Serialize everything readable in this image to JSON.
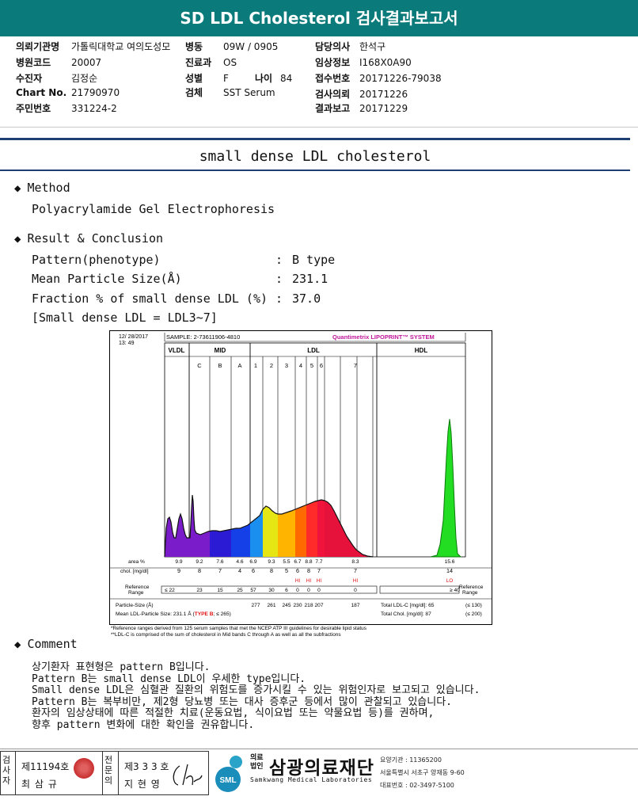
{
  "header": {
    "title": "SD LDL Cholesterol 검사결과보고서"
  },
  "patient": {
    "hospital_label": "의뢰기관명",
    "hospital": "가톨릭대학교 여의도성모",
    "ward_label": "병동",
    "ward": "09W / 0905",
    "doctor_label": "담당의사",
    "doctor": "한석구",
    "code_label": "병원코드",
    "code": "20007",
    "dept_label": "진료과",
    "dept": "OS",
    "clinical_label": "임상정보",
    "clinical": "I168X0A90",
    "name_label": "수진자",
    "name": "김정순",
    "sex_label": "성별",
    "sex": "F",
    "age_label": "나이",
    "age": "84",
    "receipt_label": "접수번호",
    "receipt": "20171226-79038",
    "chart_label": "Chart No.",
    "chart": "21790970",
    "specimen_label": "검체",
    "specimen": "SST Serum",
    "request_label": "검사의뢰",
    "request": "20171226",
    "id_label": "주민번호",
    "id": "331224-2",
    "report_label": "결과보고",
    "report": "20171229"
  },
  "report": {
    "section_title": "small dense LDL cholesterol",
    "method_heading": "Method",
    "method": "Polyacrylamide Gel Electrophoresis",
    "result_heading": "Result & Conclusion",
    "pattern_label": "Pattern(phenotype)",
    "pattern_value": "B type",
    "size_label": "Mean Particle Size(Å)",
    "size_value": "231.1",
    "fraction_label": "Fraction % of small dense LDL (%)",
    "fraction_value": "37.0",
    "colon": ":",
    "sd_note": "[Small dense LDL = LDL3~7]",
    "comment_heading": "Comment",
    "comment": "상기환자 표현형은 pattern B입니다.\nPattern B는 small dense LDL이 우세한 type입니다.\nSmall dense LDL은 심혈관 질환의 위험도를 증가시킬 수 있는 위험인자로 보고되고 있습니다.\nPattern B는 복부비만, 제2형 당뇨병 또는 대사 증후군 등에서 많이 관찰되고 있습니다.\n환자의 임상상태에 따른 적절한 치료(운동요법, 식이요법 또는 약물요법 등)를 권하며,\n향후 pattern 변화에 대한 확인을 권유합니다."
  },
  "chart_data": {
    "type": "area",
    "date": "12/ 28/2017",
    "time": "13: 49",
    "sample": "SAMPLE:   2-73611906-4810",
    "brand": "Quantimetrix LIPOPRINT™ SYSTEM",
    "groups": [
      "VLDL",
      "MID",
      "LDL",
      "HDL"
    ],
    "bands": [
      "C",
      "B",
      "A",
      "1",
      "2",
      "3",
      "4",
      "5",
      "6",
      "7"
    ],
    "area_label": "area %",
    "area": [
      "9.9",
      "9.2",
      "7.6",
      "4.6",
      "6.9",
      "9.3",
      "5.5",
      "6.7",
      "8.8",
      "7.7",
      "8.3",
      "15.6"
    ],
    "chol_label": "chol. [mg/dl]",
    "chol": [
      "9",
      "8",
      "7",
      "4",
      "6",
      "8",
      "5",
      "6",
      "8",
      "7",
      "7",
      "14"
    ],
    "flags": [
      "",
      "",
      "",
      "",
      "",
      "",
      "",
      "HI",
      "HI",
      "HI",
      "HI",
      "LO"
    ],
    "ref_label": "Reference Range",
    "ref": [
      "≤ 22",
      "23",
      "15",
      "25",
      "57",
      "30",
      "6",
      "0",
      "0",
      "0",
      "0",
      "≥ 40"
    ],
    "psize_label": "Particle-Size (Å)",
    "psize": [
      "277",
      "261",
      "245",
      "230",
      "218",
      "207",
      "187"
    ],
    "mean_label": "Mean LDL-Particle Size:",
    "mean_value": "231.1 Å",
    "type_text": "TYPE B",
    "type_limit": "; ≤ 265",
    "total_ldl_label": "Total LDL-C [mg/dl]:",
    "total_ldl": "65",
    "total_ldl_ref": "(≤ 130)",
    "total_chol_label": "Total Chol. [mg/dl]:",
    "total_chol": "87",
    "total_chol_ref": "(≤ 200)",
    "footnote1": "*Reference ranges derived from 125 serum samples that met the NCEP ATP III guidelines for desirable lipid status",
    "footnote2": "**LDL-C is comprised of the sum of cholesterol in Mid bands C through A as well as all the subfractions"
  },
  "footer": {
    "checker_label": "검사자",
    "checker_no": "제11194호",
    "checker_name": "최 삼 규",
    "approver_label": "전문의",
    "approver_no": "제3 3 3 호",
    "approver_name": "지 현 영",
    "org_prefix": "의료법인",
    "org_name": "삼광의료재단",
    "org_en": "Samkwang Medical Laboratories",
    "sml": "SML",
    "contact1": "요양기관 : 11365200",
    "contact2": "서울특별시 서초구 양재동 9-60",
    "contact3": "대표번호 : 02-3497-5100"
  },
  "colors": {
    "title_bar": "#0b7a7a",
    "navy_rule": "#1d3f74"
  }
}
